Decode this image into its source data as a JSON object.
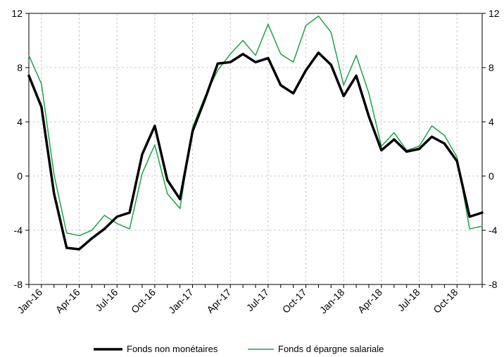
{
  "chart_data": {
    "type": "line",
    "x": [
      "Dec-15",
      "Jan-16",
      "Feb-16",
      "Mar-16",
      "Apr-16",
      "May-16",
      "Jun-16",
      "Jul-16",
      "Aug-16",
      "Sep-16",
      "Oct-16",
      "Nov-16",
      "Dec-16",
      "Jan-17",
      "Feb-17",
      "Mar-17",
      "Apr-17",
      "May-17",
      "Jun-17",
      "Jul-17",
      "Aug-17",
      "Sep-17",
      "Oct-17",
      "Nov-17",
      "Dec-17",
      "Jan-18",
      "Feb-18",
      "Mar-18",
      "Apr-18",
      "May-18",
      "Jun-18",
      "Jul-18",
      "Aug-18",
      "Sep-18",
      "Oct-18",
      "Nov-18",
      "Dec-18"
    ],
    "x_tick_labels": [
      "Jan-16",
      "Apr-16",
      "Jul-16",
      "Oct-16",
      "Jan-17",
      "Apr-17",
      "Jul-17",
      "Oct-17",
      "Jan-18",
      "Apr-18",
      "Jul-18",
      "Oct-18"
    ],
    "x_tick_indices": [
      1,
      4,
      7,
      10,
      13,
      16,
      19,
      22,
      25,
      28,
      31,
      34
    ],
    "ylim": [
      -8,
      12
    ],
    "y_ticks": [
      -8,
      -4,
      0,
      4,
      8,
      12
    ],
    "y_tick_labels_left": [
      "-8",
      "-4",
      "0",
      "4",
      "8",
      "12"
    ],
    "y_tick_labels_right": [
      "-8",
      "-4",
      "0",
      "4",
      "8",
      "12"
    ],
    "grid": true,
    "legend_position": "bottom",
    "series": [
      {
        "name": "Fonds non monétaires",
        "color": "#000000",
        "values": [
          7.4,
          5.1,
          -1.3,
          -5.3,
          -5.4,
          -4.6,
          -3.9,
          -3.0,
          -2.7,
          1.6,
          3.7,
          -0.3,
          -1.7,
          3.3,
          5.7,
          8.3,
          8.4,
          9.0,
          8.4,
          8.7,
          6.7,
          6.1,
          7.8,
          9.1,
          8.2,
          5.9,
          7.4,
          4.4,
          1.9,
          2.7,
          1.8,
          2.0,
          2.9,
          2.4,
          1.1,
          -3.0,
          -2.7
        ]
      },
      {
        "name": "Fonds d épargne salariale",
        "color": "#1aa34a",
        "values": [
          8.9,
          6.8,
          0.1,
          -4.2,
          -4.4,
          -4.0,
          -2.9,
          -3.5,
          -3.9,
          0.2,
          2.3,
          -1.3,
          -2.4,
          3.6,
          5.9,
          7.8,
          9.0,
          10.0,
          8.9,
          11.2,
          9.0,
          8.4,
          11.1,
          11.8,
          10.6,
          6.7,
          8.9,
          6.1,
          2.2,
          3.2,
          1.9,
          2.2,
          3.7,
          3.0,
          1.4,
          -3.9,
          -3.7
        ]
      }
    ]
  }
}
